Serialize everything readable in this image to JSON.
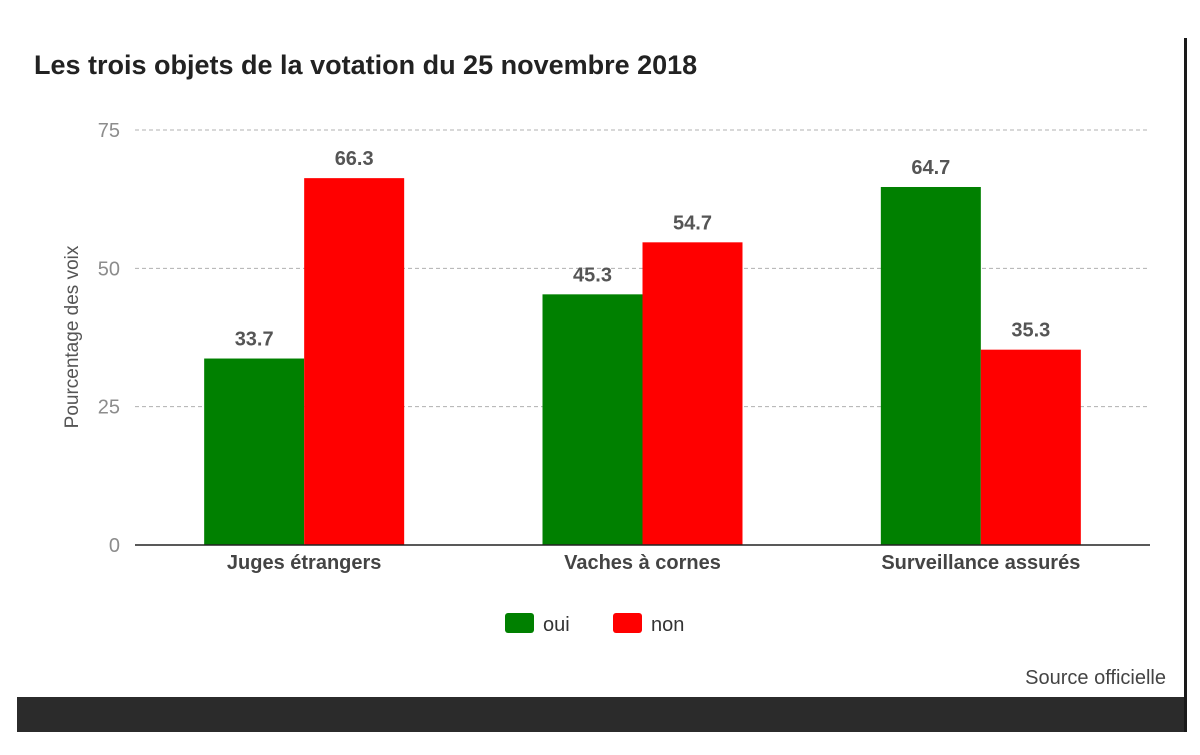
{
  "chart_data": {
    "type": "bar",
    "title": "Les trois objets de la votation du 25 novembre 2018",
    "xlabel": "",
    "ylabel": "Pourcentage des voix",
    "categories": [
      "Juges étrangers",
      "Vaches à cornes",
      "Surveillance assurés"
    ],
    "series": [
      {
        "name": "oui",
        "color": "#008000",
        "values": [
          33.7,
          45.3,
          64.7
        ]
      },
      {
        "name": "non",
        "color": "#ff0000",
        "values": [
          66.3,
          54.7,
          35.3
        ]
      }
    ],
    "ylim": [
      0,
      75
    ],
    "yticks": [
      "0",
      "25",
      "50",
      "75"
    ],
    "grid": true,
    "legend_position": "bottom"
  },
  "footer": {
    "source": "Source officielle"
  }
}
